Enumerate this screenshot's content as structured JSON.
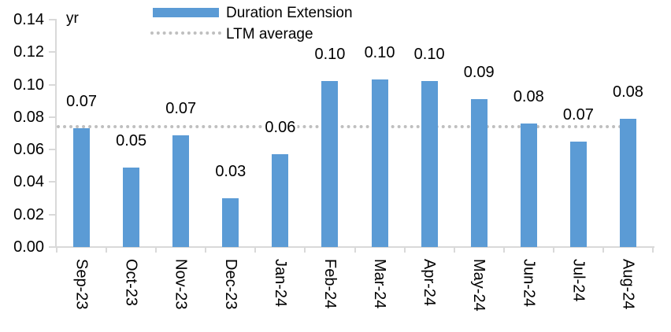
{
  "chart_data": {
    "type": "bar",
    "title": "",
    "categories": [
      "Sep-23",
      "Oct-23",
      "Nov-23",
      "Dec-23",
      "Jan-24",
      "Feb-24",
      "Mar-24",
      "Apr-24",
      "May-24",
      "Jun-24",
      "Jul-24",
      "Aug-24"
    ],
    "series": [
      {
        "name": "Duration Extension",
        "type": "bar",
        "color": "#5B9BD5",
        "values": [
          0.073,
          0.049,
          0.069,
          0.03,
          0.057,
          0.102,
          0.103,
          0.102,
          0.091,
          0.076,
          0.065,
          0.079
        ],
        "data_labels": [
          "0.07",
          "0.05",
          "0.07",
          "0.03",
          "0.06",
          "0.10",
          "0.10",
          "0.10",
          "0.09",
          "0.08",
          "0.07",
          "0.08"
        ]
      },
      {
        "name": "LTM average",
        "type": "line",
        "line_style": "dotted",
        "color": "#BFBFBF",
        "value": 0.074
      }
    ],
    "y_axis": {
      "unit": "yr",
      "min": 0.0,
      "max": 0.14,
      "step": 0.02,
      "tick_labels_top_to_bottom": [
        "0.14",
        "0.12",
        "0.10",
        "0.08",
        "0.06",
        "0.04",
        "0.02",
        "0.00"
      ]
    },
    "axis_color": "#D9D9D9",
    "grid": false,
    "legend_position": "top",
    "xlabel": "",
    "ylabel": "yr"
  }
}
